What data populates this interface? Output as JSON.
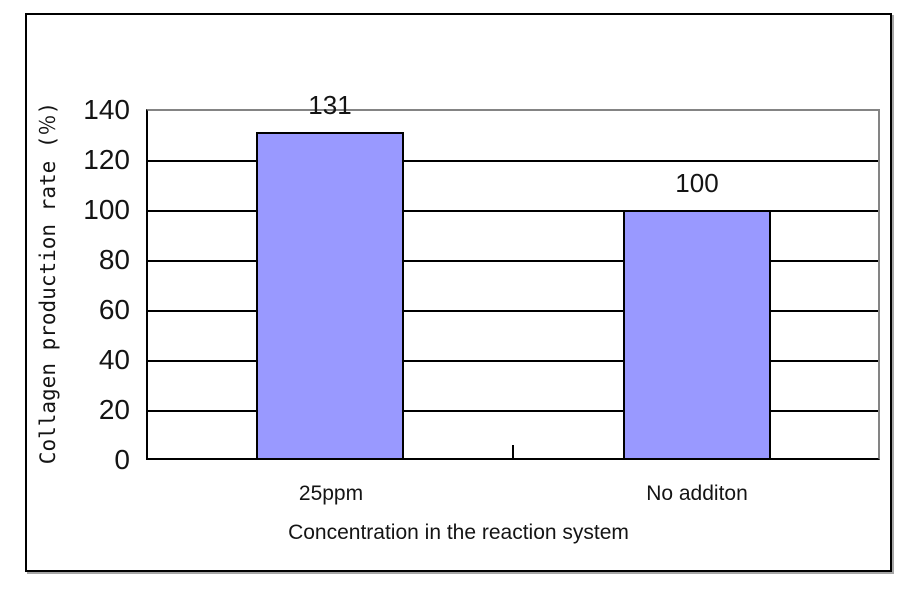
{
  "chart_data": {
    "type": "bar",
    "title": "",
    "categories": [
      "25ppm",
      "No additon"
    ],
    "values": [
      131,
      100
    ],
    "data_labels": [
      "131",
      "100"
    ],
    "xlabel": "Concentration in the reaction system",
    "ylabel": "Collagen production rate (％)",
    "ylim": [
      0,
      140
    ],
    "ytick_step": 20,
    "yticks": [
      "140",
      "120",
      "100",
      "80",
      "60",
      "40",
      "20",
      "0"
    ],
    "grid": "horizontal",
    "legend_position": "none",
    "colors": {
      "bar_fill": "#9999FF",
      "bar_border": "#000000",
      "gridline": "#000000",
      "plot_border": "#848484",
      "axis": "#000000",
      "frame_border": "#000000",
      "text": "#141414"
    }
  }
}
